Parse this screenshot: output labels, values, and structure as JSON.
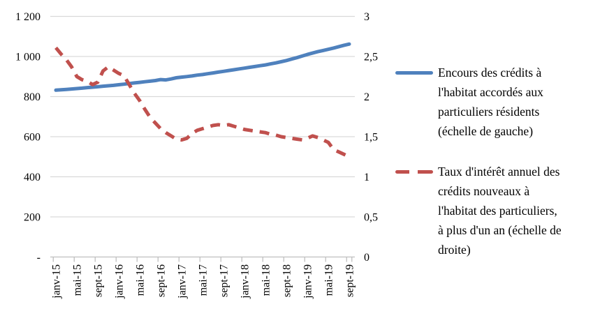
{
  "chart_data": {
    "type": "line",
    "title": "",
    "x": [
      "janv-15",
      "févr-15",
      "mars-15",
      "avr-15",
      "mai-15",
      "juin-15",
      "juil-15",
      "août-15",
      "sept-15",
      "oct-15",
      "nov-15",
      "déc-15",
      "janv-16",
      "févr-16",
      "mars-16",
      "avr-16",
      "mai-16",
      "juin-16",
      "juil-16",
      "août-16",
      "sept-16",
      "oct-16",
      "nov-16",
      "déc-16",
      "janv-17",
      "févr-17",
      "mars-17",
      "avr-17",
      "mai-17",
      "juin-17",
      "juil-17",
      "août-17",
      "sept-17",
      "oct-17",
      "nov-17",
      "déc-17",
      "janv-18",
      "févr-18",
      "mars-18",
      "avr-18",
      "mai-18",
      "juin-18",
      "juil-18",
      "août-18",
      "sept-18",
      "oct-18",
      "nov-18",
      "déc-18",
      "janv-19",
      "févr-19",
      "mars-19",
      "avr-19",
      "mai-19",
      "juin-19",
      "juil-19",
      "août-19",
      "sept-19"
    ],
    "x_axis": {
      "tick_every": 4,
      "shown_tick_labels": [
        "janv-15",
        "mai-15",
        "sept-15",
        "janv-16",
        "mai-16",
        "sept-16",
        "janv-17",
        "mai-17",
        "sept-17",
        "janv-18",
        "mai-18",
        "sept-18",
        "janv-19",
        "mai-19",
        "sept-19"
      ]
    },
    "left_axis": {
      "min": 0,
      "max": 1200,
      "labels": [
        "1 200",
        "1 000",
        "800",
        "600",
        "400",
        "200",
        "-"
      ],
      "values": [
        1200,
        1000,
        800,
        600,
        400,
        200,
        0
      ]
    },
    "right_axis": {
      "min": 0,
      "max": 3,
      "labels": [
        "3",
        "2,5",
        "2",
        "1,5",
        "1",
        "0,5",
        "0"
      ],
      "values": [
        3,
        2.5,
        2,
        1.5,
        1,
        0.5,
        0
      ]
    },
    "grid": true,
    "legend_position": "right",
    "series": [
      {
        "name": "Encours des crédits à l'habitat accordés aux particuliers résidents (échelle de gauche)",
        "axis": "left",
        "style": "solid",
        "color": "#4F81BD",
        "values": [
          832,
          834,
          836,
          838,
          840,
          842,
          845,
          847,
          849,
          852,
          854,
          856,
          859,
          862,
          865,
          868,
          871,
          874,
          877,
          880,
          885,
          883,
          888,
          894,
          897,
          900,
          903,
          907,
          910,
          914,
          918,
          922,
          926,
          930,
          934,
          938,
          942,
          946,
          950,
          954,
          958,
          963,
          968,
          974,
          980,
          987,
          994,
          1002,
          1010,
          1017,
          1024,
          1030,
          1036,
          1042,
          1049,
          1056,
          1062
        ]
      },
      {
        "name": "Taux d'intérêt annuel des crédits nouveaux à l'habitat des particuliers, à plus d'un an (échelle de droite)",
        "axis": "right",
        "style": "dashed",
        "color": "#C0504D",
        "values": [
          2.61,
          2.53,
          2.46,
          2.37,
          2.25,
          2.21,
          2.19,
          2.15,
          2.18,
          2.32,
          2.37,
          2.33,
          2.29,
          2.26,
          2.15,
          2.04,
          1.95,
          1.84,
          1.74,
          1.67,
          1.6,
          1.55,
          1.51,
          1.47,
          1.46,
          1.48,
          1.54,
          1.58,
          1.6,
          1.62,
          1.64,
          1.65,
          1.64,
          1.65,
          1.63,
          1.61,
          1.59,
          1.58,
          1.57,
          1.56,
          1.55,
          1.53,
          1.52,
          1.5,
          1.49,
          1.48,
          1.47,
          1.46,
          1.48,
          1.51,
          1.49,
          1.46,
          1.43,
          1.34,
          1.31,
          1.28,
          1.25
        ]
      }
    ]
  },
  "legend": {
    "items": [
      {
        "label": "Encours des crédits à\nl'habitat accordés aux\nparticuliers résidents\n(échelle de gauche)"
      },
      {
        "label": "Taux d'intérêt annuel des\ncrédits nouveaux à\nl'habitat des particuliers,\nà plus d'un an (échelle de\ndroite)"
      }
    ]
  },
  "colors": {
    "encours_line": "#4F81BD",
    "taux_line": "#C0504D",
    "gridline": "#D9D9D9",
    "axis_line": "#BFBFBF",
    "text": "#000000",
    "background": "#FFFFFF"
  }
}
